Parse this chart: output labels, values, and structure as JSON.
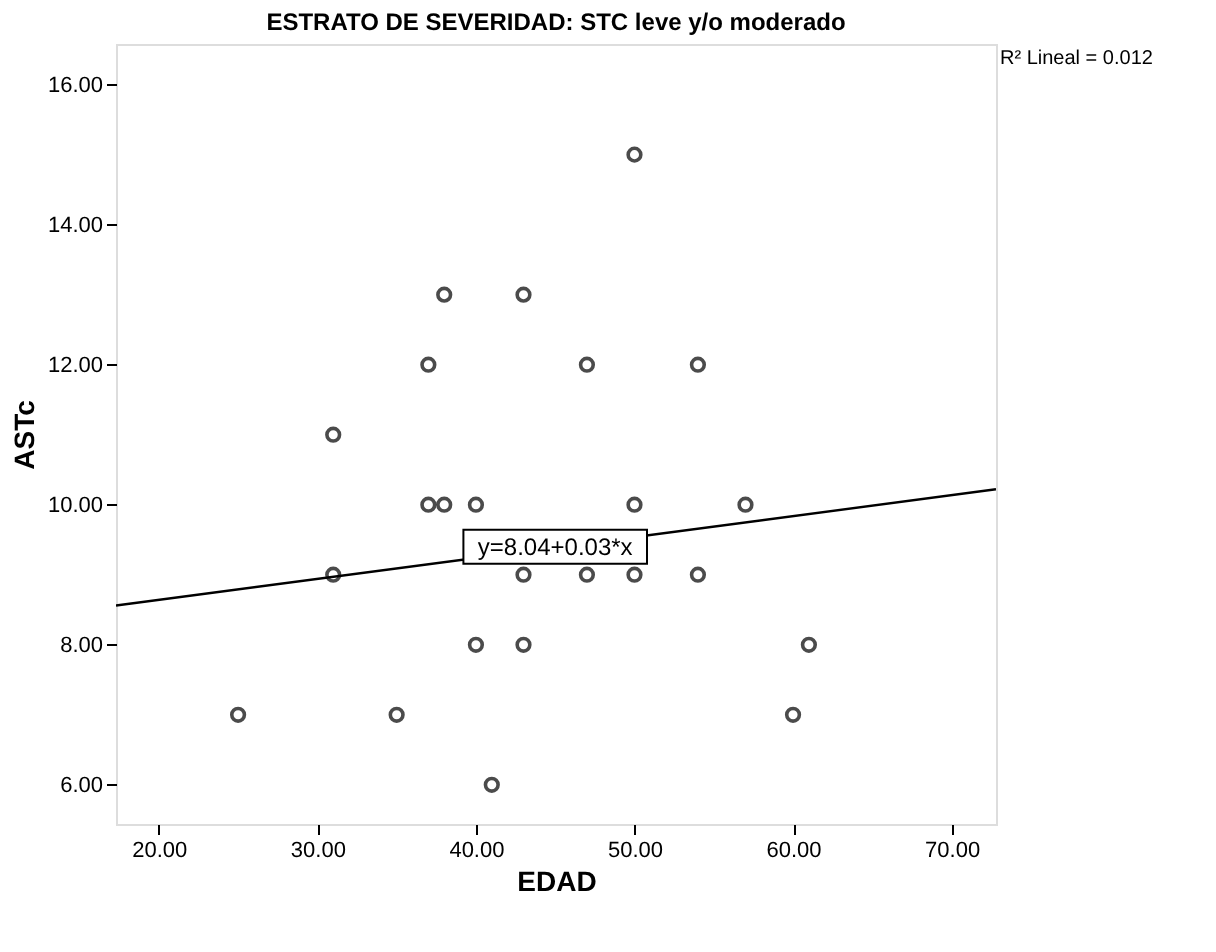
{
  "chart_data": {
    "type": "scatter",
    "title": "ESTRATO DE SEVERIDAD: STC leve y/o moderado",
    "xlabel": "EDAD",
    "ylabel": "ASTc",
    "xlim": [
      17.3,
      72.8
    ],
    "ylim": [
      5.44,
      16.58
    ],
    "xticks": [
      {
        "value": 20,
        "label": "20.00"
      },
      {
        "value": 30,
        "label": "30.00"
      },
      {
        "value": 40,
        "label": "40.00"
      },
      {
        "value": 50,
        "label": "50.00"
      },
      {
        "value": 60,
        "label": "60.00"
      },
      {
        "value": 70,
        "label": "70.00"
      }
    ],
    "yticks": [
      {
        "value": 6,
        "label": "6.00"
      },
      {
        "value": 8,
        "label": "8.00"
      },
      {
        "value": 10,
        "label": "10.00"
      },
      {
        "value": 12,
        "label": "12.00"
      },
      {
        "value": 14,
        "label": "14.00"
      },
      {
        "value": 16,
        "label": "16.00"
      }
    ],
    "series": [
      {
        "color": "#000000",
        "marker": "circle",
        "x": [
          25,
          31,
          31,
          35,
          37,
          37,
          38,
          38,
          40,
          40,
          41,
          43,
          43,
          43,
          47,
          47,
          50,
          50,
          50,
          54,
          54,
          57,
          60,
          61
        ],
        "values": [
          7,
          11,
          9,
          7,
          12,
          10,
          13,
          10,
          10,
          8,
          6,
          13,
          9,
          8,
          12,
          9,
          15,
          10,
          9,
          12,
          9,
          10,
          7,
          8
        ]
      },
      {
        "type": "line",
        "color": "#000000",
        "marker": "none",
        "line_style": "solid",
        "x": [
          17.3,
          72.8
        ],
        "values": [
          8.56,
          10.22
        ]
      }
    ],
    "annotations": [
      {
        "text": "y=8.04+0.03*x",
        "x": 45,
        "y": 9.4
      },
      "R² Lineal = 0.012"
    ],
    "grid": false
  }
}
